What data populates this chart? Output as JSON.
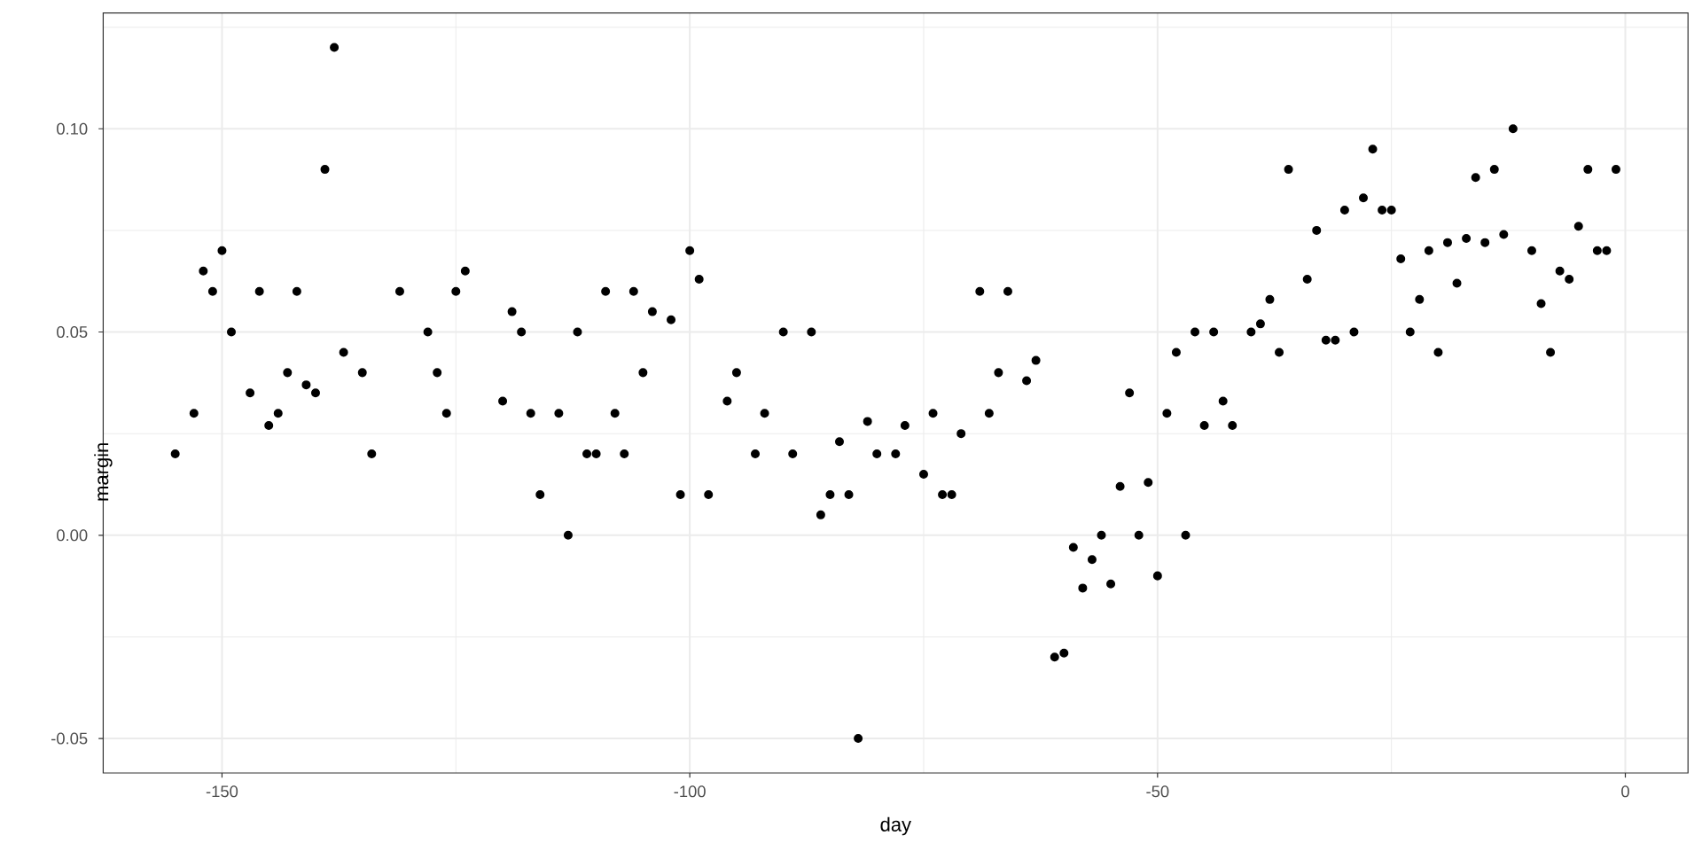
{
  "chart_data": {
    "type": "scatter",
    "xlabel": "day",
    "ylabel": "margin",
    "x": [
      -155,
      -153,
      -152,
      -151,
      -150,
      -149,
      -147,
      -146,
      -145,
      -144,
      -143,
      -142,
      -141,
      -140,
      -139,
      -138,
      -137,
      -135,
      -134,
      -131,
      -128,
      -127,
      -126,
      -125,
      -124,
      -120,
      -119,
      -118,
      -117,
      -116,
      -114,
      -113,
      -112,
      -111,
      -110,
      -109,
      -108,
      -107,
      -106,
      -105,
      -104,
      -102,
      -101,
      -100,
      -99,
      -98,
      -96,
      -95,
      -93,
      -92,
      -90,
      -89,
      -87,
      -86,
      -85,
      -84,
      -83,
      -82,
      -81,
      -80,
      -78,
      -77,
      -75,
      -74,
      -73,
      -72,
      -71,
      -69,
      -68,
      -67,
      -66,
      -64,
      -63,
      -61,
      -60,
      -59,
      -58,
      -57,
      -56,
      -55,
      -54,
      -53,
      -52,
      -51,
      -50,
      -49,
      -48,
      -47,
      -46,
      -45,
      -44,
      -43,
      -42,
      -40,
      -39,
      -38,
      -37,
      -36,
      -34,
      -33,
      -32,
      -31,
      -30,
      -29,
      -28,
      -27,
      -26,
      -25,
      -24,
      -23,
      -22,
      -21,
      -20,
      -19,
      -18,
      -17,
      -16,
      -15,
      -14,
      -13,
      -12,
      -10,
      -9,
      -8,
      -7,
      -6,
      -5,
      -4,
      -3,
      -2,
      -1
    ],
    "values": [
      0.02,
      0.03,
      0.065,
      0.06,
      0.07,
      0.05,
      0.035,
      0.06,
      0.027,
      0.03,
      0.04,
      0.06,
      0.037,
      0.035,
      0.09,
      0.12,
      0.045,
      0.04,
      0.02,
      0.06,
      0.05,
      0.04,
      0.03,
      0.06,
      0.065,
      0.033,
      0.055,
      0.05,
      0.03,
      0.01,
      0.03,
      0.0,
      0.05,
      0.02,
      0.02,
      0.06,
      0.03,
      0.02,
      0.06,
      0.04,
      0.055,
      0.053,
      0.01,
      0.07,
      0.063,
      0.01,
      0.033,
      0.04,
      0.02,
      0.03,
      0.05,
      0.02,
      0.05,
      0.005,
      0.01,
      0.023,
      0.01,
      -0.05,
      0.028,
      0.02,
      0.02,
      0.027,
      0.015,
      0.03,
      0.01,
      0.01,
      0.025,
      0.06,
      0.03,
      0.04,
      0.06,
      0.038,
      0.043,
      -0.03,
      -0.029,
      -0.003,
      -0.013,
      -0.006,
      0.0,
      -0.012,
      0.012,
      0.035,
      0.0,
      0.013,
      -0.01,
      0.03,
      0.045,
      0.0,
      0.05,
      0.027,
      0.05,
      0.033,
      0.027,
      0.05,
      0.052,
      0.058,
      0.045,
      0.09,
      0.063,
      0.075,
      0.048,
      0.048,
      0.08,
      0.05,
      0.083,
      0.095,
      0.08,
      0.08,
      0.068,
      0.05,
      0.058,
      0.07,
      0.045,
      0.072,
      0.062,
      0.073,
      0.088,
      0.072,
      0.09,
      0.074,
      0.1,
      0.07,
      0.057,
      0.045,
      0.065,
      0.063,
      0.076,
      0.09,
      0.07,
      0.07,
      0.09
    ],
    "color": "#000000",
    "marker": "circle",
    "xlim": [
      -162.7,
      6.7
    ],
    "ylim": [
      -0.0585,
      0.1285
    ],
    "xticks": [
      -150,
      -100,
      -50,
      0
    ],
    "yticks": [
      {
        "value": -0.05,
        "label": "-0.05"
      },
      {
        "value": 0,
        "label": "0.00"
      },
      {
        "value": 0.05,
        "label": "0.05"
      },
      {
        "value": 0.1,
        "label": "0.10"
      }
    ],
    "grid": true
  }
}
